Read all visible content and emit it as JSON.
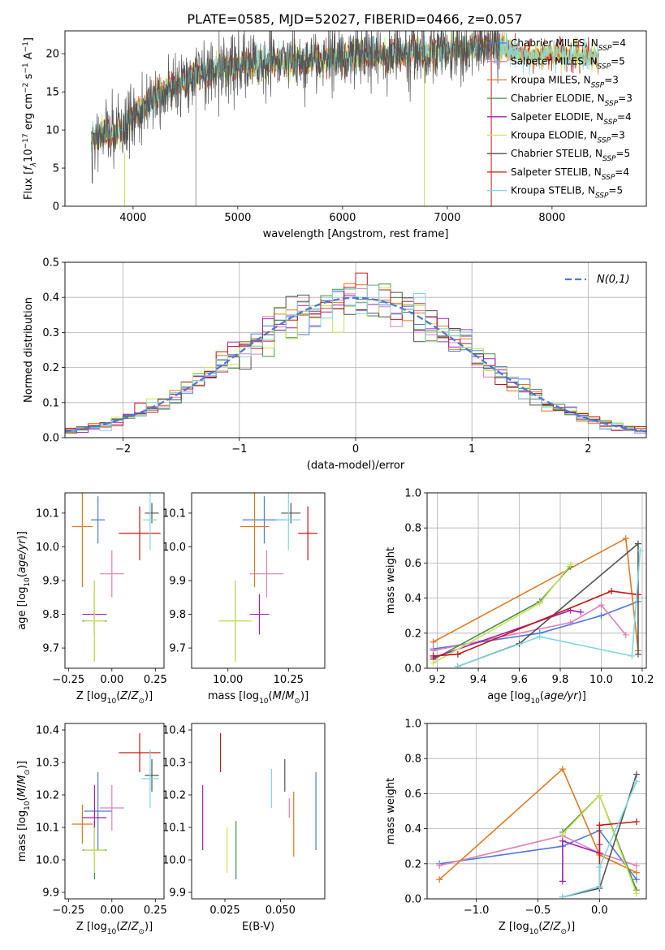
{
  "title": "PLATE=0585, MJD=52027, FIBERID=0466, z=0.057",
  "colors": {
    "chabrier_miles": "#4e79d6",
    "salpeter_miles": "#e07fb8",
    "kroupa_miles": "#e07821",
    "chabrier_elodie": "#4a8a4a",
    "salpeter_elodie": "#a020b0",
    "kroupa_elodie": "#c8e35a",
    "chabrier_stelib": "#505050",
    "salpeter_stelib": "#c01818",
    "kroupa_stelib": "#7fd8dc",
    "gauss": "#4e79d6",
    "grid": "#b0b0b0"
  },
  "chart_data": [
    {
      "type": "line",
      "id": "spectrum",
      "xlabel": "wavelength [Angstrom, rest frame]",
      "ylabel": "Flux [f_λ10^-17 erg cm^-2 s^-1 A^-1]",
      "xlim": [
        3350,
        8900
      ],
      "ylim": [
        0,
        23
      ],
      "xticks": [
        4000,
        5000,
        6000,
        7000,
        8000
      ],
      "yticks": [
        0,
        5,
        10,
        15,
        20
      ],
      "grid": false,
      "legend_position": "right",
      "legend": [
        {
          "label": "Chabrier MILES, N",
          "sub": "SSP",
          "suffix": "=4"
        },
        {
          "label": "Salpeter MILES, N",
          "sub": "SSP",
          "suffix": "=5"
        },
        {
          "label": "Kroupa MILES, N",
          "sub": "SSP",
          "suffix": "=3"
        },
        {
          "label": "Chabrier ELODIE, N",
          "sub": "SSP",
          "suffix": "=3"
        },
        {
          "label": "Salpeter ELODIE, N",
          "sub": "SSP",
          "suffix": "=4"
        },
        {
          "label": "Kroupa ELODIE, N",
          "sub": "SSP",
          "suffix": "=3"
        },
        {
          "label": "Chabrier STELIB, N",
          "sub": "SSP",
          "suffix": "=5"
        },
        {
          "label": "Salpeter STELIB, N",
          "sub": "SSP",
          "suffix": "=4"
        },
        {
          "label": "Kroupa STELIB, N",
          "sub": "SSP",
          "suffix": "=5"
        }
      ],
      "continuum": [
        [
          3600,
          9
        ],
        [
          3900,
          10
        ],
        [
          4000,
          12
        ],
        [
          4200,
          14
        ],
        [
          4400,
          16
        ],
        [
          4600,
          17
        ],
        [
          4800,
          18
        ],
        [
          5000,
          18.5
        ],
        [
          5200,
          18.8
        ],
        [
          5600,
          19
        ],
        [
          5800,
          19.3
        ],
        [
          6000,
          19.5
        ],
        [
          6300,
          19.8
        ],
        [
          6600,
          20.2
        ],
        [
          7000,
          20.5
        ],
        [
          7300,
          20.8
        ],
        [
          7500,
          21
        ],
        [
          7700,
          20
        ],
        [
          7800,
          19.5
        ],
        [
          8000,
          20
        ],
        [
          8200,
          19.8
        ],
        [
          8400,
          19.5
        ]
      ],
      "data_end": 7500,
      "model_end": 8450
    },
    {
      "type": "bar",
      "id": "residuals",
      "xlabel": "(data-model)/error",
      "ylabel": "Normed distribution",
      "xlim": [
        -2.5,
        2.5
      ],
      "ylim": [
        0,
        0.5
      ],
      "xticks": [
        -2,
        -1,
        0,
        1,
        2
      ],
      "yticks": [
        0.0,
        0.1,
        0.2,
        0.3,
        0.4,
        0.5
      ],
      "grid": true,
      "legend_position": "top-right",
      "legend_label": "N(0,1)",
      "bin_width": 0.1
    },
    {
      "type": "scatter",
      "id": "z_age",
      "xlabel": "Z [log10(Z/Z⊙)]",
      "ylabel": "age  [log10(age/yr)]",
      "xlim": [
        -0.27,
        0.3
      ],
      "ylim": [
        9.64,
        10.16
      ],
      "xticks": [
        -0.25,
        0.0,
        0.25
      ],
      "yticks": [
        9.7,
        9.8,
        9.9,
        10.0,
        10.1
      ],
      "points": [
        {
          "x": -0.08,
          "y": 10.08,
          "xe": 0.04,
          "ye": 0.07,
          "c": "chabrier_miles"
        },
        {
          "x": 0.0,
          "y": 9.92,
          "xe": 0.07,
          "ye": 0.07,
          "c": "salpeter_miles"
        },
        {
          "x": -0.17,
          "y": 10.06,
          "xe": 0.06,
          "ye": 0.18,
          "c": "kroupa_miles"
        },
        {
          "x": -0.1,
          "y": 9.78,
          "xe": 0.07,
          "ye": 0.12,
          "c": "chabrier_elodie"
        },
        {
          "x": -0.1,
          "y": 9.8,
          "xe": 0.07,
          "ye": 0.06,
          "c": "salpeter_elodie"
        },
        {
          "x": -0.1,
          "y": 9.78,
          "xe": 0.06,
          "ye": 0.12,
          "c": "kroupa_elodie"
        },
        {
          "x": 0.23,
          "y": 10.1,
          "xe": 0.04,
          "ye": 0.03,
          "c": "chabrier_stelib"
        },
        {
          "x": 0.16,
          "y": 10.04,
          "xe": 0.12,
          "ye": 0.08,
          "c": "salpeter_stelib"
        },
        {
          "x": 0.22,
          "y": 10.08,
          "xe": 0.04,
          "ye": 0.09,
          "c": "kroupa_stelib"
        }
      ]
    },
    {
      "type": "scatter",
      "id": "mass_age",
      "xlabel": "mass [log10(M/M⊙)]",
      "ylabel": "",
      "xlim": [
        9.85,
        10.4
      ],
      "ylim": [
        9.64,
        10.16
      ],
      "xticks": [
        10.0,
        10.25
      ],
      "yticks": [
        9.7,
        9.8,
        9.9,
        10.0,
        10.1
      ],
      "points": [
        {
          "x": 10.15,
          "y": 10.08,
          "xe": 0.09,
          "ye": 0.07,
          "c": "chabrier_miles"
        },
        {
          "x": 10.16,
          "y": 9.92,
          "xe": 0.07,
          "ye": 0.07,
          "c": "salpeter_miles"
        },
        {
          "x": 10.11,
          "y": 10.06,
          "xe": 0.06,
          "ye": 0.18,
          "c": "kroupa_miles"
        },
        {
          "x": 10.03,
          "y": 9.78,
          "xe": 0.06,
          "ye": 0.12,
          "c": "chabrier_elodie"
        },
        {
          "x": 10.13,
          "y": 9.8,
          "xe": 0.04,
          "ye": 0.06,
          "c": "salpeter_elodie"
        },
        {
          "x": 10.03,
          "y": 9.78,
          "xe": 0.07,
          "ye": 0.12,
          "c": "kroupa_elodie"
        },
        {
          "x": 10.26,
          "y": 10.1,
          "xe": 0.04,
          "ye": 0.03,
          "c": "chabrier_stelib"
        },
        {
          "x": 10.33,
          "y": 10.04,
          "xe": 0.04,
          "ye": 0.08,
          "c": "salpeter_stelib"
        },
        {
          "x": 10.25,
          "y": 10.08,
          "xe": 0.05,
          "ye": 0.09,
          "c": "kroupa_stelib"
        }
      ]
    },
    {
      "type": "line",
      "id": "age_weight",
      "xlabel": "age  [log10(age/yr)]",
      "ylabel": "mass weight",
      "xlim": [
        9.15,
        10.22
      ],
      "ylim": [
        0,
        1
      ],
      "xticks": [
        9.2,
        9.4,
        9.6,
        9.8,
        10.0,
        10.2
      ],
      "yticks": [
        0.0,
        0.2,
        0.4,
        0.6,
        0.8,
        1.0
      ],
      "grid": true,
      "series": [
        {
          "c": "chabrier_miles",
          "x": [
            9.18,
            9.7,
            10.0,
            10.18
          ],
          "y": [
            0.11,
            0.2,
            0.3,
            0.38
          ]
        },
        {
          "c": "salpeter_miles",
          "x": [
            9.18,
            9.85,
            10.0,
            10.12
          ],
          "y": [
            0.1,
            0.26,
            0.36,
            0.19
          ]
        },
        {
          "c": "kroupa_miles",
          "x": [
            9.18,
            10.12,
            10.18
          ],
          "y": [
            0.15,
            0.74,
            0.1
          ]
        },
        {
          "c": "chabrier_elodie",
          "x": [
            9.18,
            9.7,
            9.85
          ],
          "y": [
            0.05,
            0.38,
            0.58
          ]
        },
        {
          "c": "salpeter_elodie",
          "x": [
            9.18,
            9.85,
            9.9
          ],
          "y": [
            0.06,
            0.33,
            0.32
          ]
        },
        {
          "c": "kroupa_elodie",
          "x": [
            9.18,
            9.7,
            9.85
          ],
          "y": [
            0.03,
            0.37,
            0.59
          ]
        },
        {
          "c": "chabrier_stelib",
          "x": [
            9.3,
            9.6,
            10.18,
            10.18
          ],
          "y": [
            0.01,
            0.14,
            0.71,
            0.08
          ]
        },
        {
          "c": "salpeter_stelib",
          "x": [
            9.18,
            9.3,
            10.05,
            10.18
          ],
          "y": [
            0.07,
            0.08,
            0.44,
            0.42
          ]
        },
        {
          "c": "kroupa_stelib",
          "x": [
            9.3,
            9.7,
            10.15,
            10.19
          ],
          "y": [
            0.01,
            0.18,
            0.07,
            0.67
          ]
        }
      ]
    },
    {
      "type": "scatter",
      "id": "z_mass",
      "xlabel": "Z [log10(Z/Z⊙)]",
      "ylabel": "mass [log10(M/M⊙)]",
      "xlim": [
        -0.27,
        0.3
      ],
      "ylim": [
        9.88,
        10.42
      ],
      "xticks": [
        -0.25,
        0.0,
        0.25
      ],
      "yticks": [
        9.9,
        10.0,
        10.1,
        10.2,
        10.3,
        10.4
      ],
      "points": [
        {
          "x": -0.08,
          "y": 10.15,
          "xe": 0.08,
          "ye": 0.12,
          "c": "chabrier_miles"
        },
        {
          "x": 0.0,
          "y": 10.16,
          "xe": 0.07,
          "ye": 0.07,
          "c": "salpeter_miles"
        },
        {
          "x": -0.17,
          "y": 10.11,
          "xe": 0.06,
          "ye": 0.06,
          "c": "kroupa_miles"
        },
        {
          "x": -0.1,
          "y": 10.03,
          "xe": 0.07,
          "ye": 0.09,
          "c": "chabrier_elodie"
        },
        {
          "x": -0.1,
          "y": 10.13,
          "xe": 0.07,
          "ye": 0.1,
          "c": "salpeter_elodie"
        },
        {
          "x": -0.1,
          "y": 10.03,
          "xe": 0.06,
          "ye": 0.07,
          "c": "kroupa_elodie"
        },
        {
          "x": 0.23,
          "y": 10.26,
          "xe": 0.04,
          "ye": 0.05,
          "c": "chabrier_stelib"
        },
        {
          "x": 0.16,
          "y": 10.33,
          "xe": 0.12,
          "ye": 0.06,
          "c": "salpeter_stelib"
        },
        {
          "x": 0.22,
          "y": 10.25,
          "xe": 0.05,
          "ye": 0.09,
          "c": "kroupa_stelib"
        }
      ]
    },
    {
      "type": "scatter",
      "id": "ebv_mass",
      "xlabel": "E(B-V)",
      "ylabel": "",
      "xlim": [
        0.01,
        0.07
      ],
      "ylim": [
        9.88,
        10.42
      ],
      "xticks": [
        0.025,
        0.05
      ],
      "yticks": [
        9.9,
        10.0,
        10.1,
        10.2,
        10.3,
        10.4
      ],
      "points": [
        {
          "x": 0.066,
          "y": 10.15,
          "ye": 0.12,
          "c": "chabrier_miles"
        },
        {
          "x": 0.054,
          "y": 10.16,
          "ye": 0.03,
          "c": "salpeter_miles"
        },
        {
          "x": 0.056,
          "y": 10.11,
          "ye": 0.1,
          "c": "kroupa_miles"
        },
        {
          "x": 0.03,
          "y": 10.03,
          "ye": 0.09,
          "c": "chabrier_elodie"
        },
        {
          "x": 0.015,
          "y": 10.13,
          "ye": 0.1,
          "c": "salpeter_elodie"
        },
        {
          "x": 0.026,
          "y": 10.03,
          "ye": 0.07,
          "c": "kroupa_elodie"
        },
        {
          "x": 0.052,
          "y": 10.26,
          "ye": 0.05,
          "c": "chabrier_stelib"
        },
        {
          "x": 0.023,
          "y": 10.33,
          "ye": 0.06,
          "c": "salpeter_stelib"
        },
        {
          "x": 0.046,
          "y": 10.22,
          "ye": 0.06,
          "c": "kroupa_stelib"
        }
      ]
    },
    {
      "type": "line",
      "id": "z_weight",
      "xlabel": "Z [log10(Z/Z⊙)]",
      "ylabel": "mass weight",
      "xlim": [
        -1.4,
        0.38
      ],
      "ylim": [
        0,
        1
      ],
      "xticks": [
        -1.0,
        -0.5,
        0.0
      ],
      "yticks": [
        0.0,
        0.2,
        0.4,
        0.6,
        0.8,
        1.0
      ],
      "grid": true,
      "series": [
        {
          "c": "chabrier_miles",
          "x": [
            -1.3,
            -0.3,
            0.0,
            0.3
          ],
          "y": [
            0.2,
            0.3,
            0.39,
            0.11
          ]
        },
        {
          "c": "salpeter_miles",
          "x": [
            -1.3,
            -0.3,
            0.0,
            0.3
          ],
          "y": [
            0.19,
            0.36,
            0.26,
            0.19
          ]
        },
        {
          "c": "kroupa_miles",
          "x": [
            -1.3,
            -0.3,
            0.0,
            0.3
          ],
          "y": [
            0.11,
            0.74,
            0.25,
            0.15
          ]
        },
        {
          "c": "chabrier_elodie",
          "x": [
            -0.3,
            0.0,
            0.3
          ],
          "y": [
            0.38,
            0.59,
            0.05
          ]
        },
        {
          "c": "salpeter_elodie",
          "x": [
            -0.3,
            -0.3,
            0.0,
            0.0
          ],
          "y": [
            0.1,
            0.33,
            0.26,
            0.31
          ]
        },
        {
          "c": "kroupa_elodie",
          "x": [
            -0.3,
            0.0,
            0.3
          ],
          "y": [
            0.37,
            0.59,
            0.03
          ]
        },
        {
          "c": "chabrier_stelib",
          "x": [
            -0.3,
            0.0,
            0.3
          ],
          "y": [
            0.01,
            0.06,
            0.71
          ]
        },
        {
          "c": "salpeter_stelib",
          "x": [
            0.0,
            0.0,
            0.3
          ],
          "y": [
            0.07,
            0.42,
            0.44
          ]
        },
        {
          "c": "kroupa_stelib",
          "x": [
            -0.3,
            0.0,
            0.0,
            0.3
          ],
          "y": [
            0.01,
            0.07,
            0.18,
            0.67
          ]
        }
      ]
    }
  ]
}
